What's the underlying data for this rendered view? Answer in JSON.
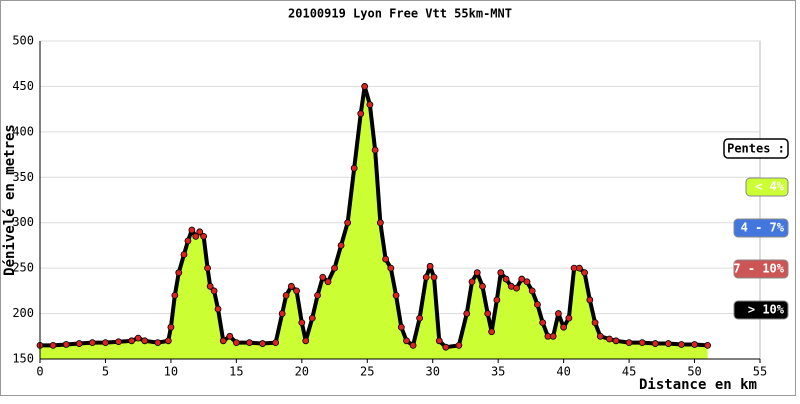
{
  "chart_data": {
    "type": "area",
    "title": "20100919 Lyon Free Vtt 55km-MNT",
    "x_label": "Distance en km",
    "y_label": "Dénivelé en metres",
    "xlim": [
      0,
      55
    ],
    "xticks": [
      0,
      5,
      10,
      15,
      20,
      25,
      30,
      35,
      40,
      45,
      50,
      55
    ],
    "ylim": [
      150,
      500
    ],
    "yticks": [
      150,
      200,
      250,
      300,
      350,
      400,
      450,
      500
    ],
    "grid": true,
    "area_color": "#ccff33",
    "line_color": "#000000",
    "marker_color": "#dd2222",
    "x": [
      0,
      1,
      2,
      3,
      4,
      5,
      6,
      7,
      7.5,
      8,
      9,
      9.8,
      10,
      10.3,
      10.6,
      11,
      11.3,
      11.6,
      11.9,
      12.2,
      12.5,
      12.8,
      13,
      13.3,
      13.6,
      14,
      14.5,
      15,
      16,
      17,
      18,
      18.5,
      18.8,
      19.2,
      19.6,
      20,
      20.3,
      20.8,
      21.2,
      21.6,
      22,
      22.5,
      23,
      23.5,
      24,
      24.5,
      24.8,
      25.2,
      25.6,
      26,
      26.4,
      26.8,
      27.2,
      27.6,
      28,
      28.5,
      29,
      29.5,
      29.8,
      30.1,
      30.5,
      31,
      32,
      32.6,
      33,
      33.4,
      33.8,
      34.2,
      34.5,
      34.9,
      35.2,
      35.6,
      36,
      36.4,
      36.8,
      37.2,
      37.6,
      38,
      38.4,
      38.8,
      39.2,
      39.6,
      40,
      40.4,
      40.8,
      41.2,
      41.6,
      42,
      42.4,
      42.8,
      43.5,
      44,
      45,
      46,
      47,
      48,
      49,
      50,
      51
    ],
    "values": [
      165,
      165,
      166,
      167,
      168,
      168,
      169,
      170,
      173,
      170,
      168,
      170,
      185,
      220,
      245,
      265,
      280,
      292,
      285,
      290,
      285,
      250,
      230,
      225,
      205,
      170,
      175,
      168,
      168,
      167,
      168,
      200,
      220,
      230,
      225,
      190,
      170,
      195,
      220,
      240,
      235,
      250,
      275,
      300,
      360,
      420,
      450,
      430,
      380,
      300,
      260,
      250,
      220,
      185,
      170,
      165,
      195,
      240,
      252,
      240,
      170,
      163,
      165,
      200,
      235,
      245,
      230,
      200,
      180,
      215,
      245,
      238,
      230,
      228,
      238,
      235,
      225,
      210,
      190,
      175,
      175,
      200,
      185,
      195,
      250,
      250,
      245,
      215,
      190,
      175,
      172,
      170,
      168,
      168,
      167,
      167,
      166,
      166,
      165
    ],
    "legend": {
      "title": "Pentes :",
      "position": "right",
      "items": [
        {
          "label": "< 4%",
          "color": "#ccff33",
          "text_color": "#ffffff"
        },
        {
          "label": "4 - 7%",
          "color": "#4477dd",
          "text_color": "#ffffff"
        },
        {
          "label": "7 - 10%",
          "color": "#cc5555",
          "text_color": "#ffffff"
        },
        {
          "label": "> 10%",
          "color": "#000000",
          "text_color": "#ffffff"
        }
      ]
    }
  }
}
